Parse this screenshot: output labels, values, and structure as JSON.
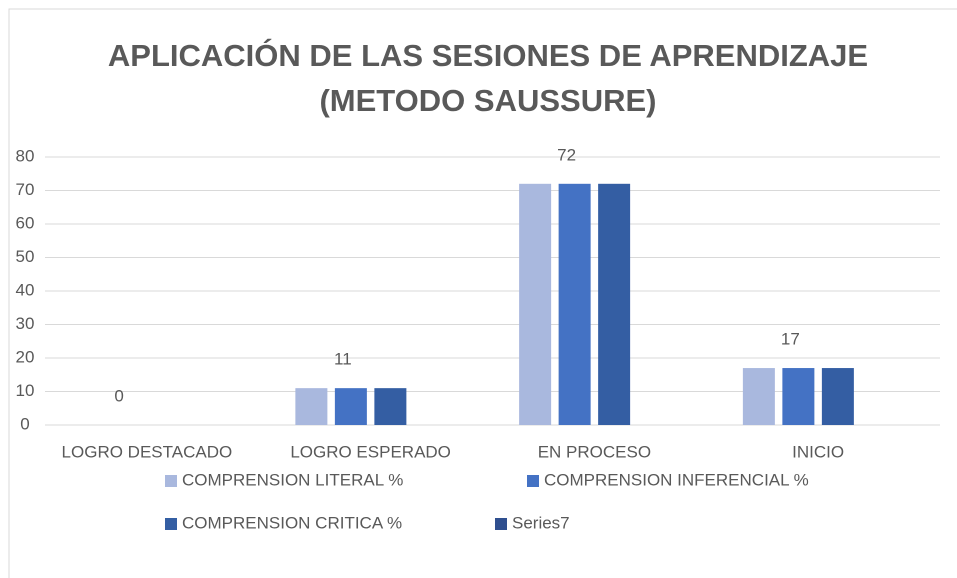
{
  "chart_data": {
    "type": "bar",
    "title": [
      "APLICACIÓN DE LAS SESIONES DE  APRENDIZAJE",
      "(METODO SAUSSURE)"
    ],
    "categories": [
      "LOGRO DESTACADO",
      "LOGRO ESPERADO",
      "EN PROCESO",
      "INICIO"
    ],
    "series": [
      {
        "name": "COMPRENSION LITERAL %",
        "color": "#a9b8de",
        "values": [
          0,
          11,
          72,
          17
        ]
      },
      {
        "name": "COMPRENSION INFERENCIAL %",
        "color": "#4472c4",
        "values": [
          0,
          11,
          72,
          17
        ],
        "data_labels": true
      },
      {
        "name": "COMPRENSION CRITICA %",
        "color": "#345ea3",
        "values": [
          0,
          11,
          72,
          17
        ]
      },
      {
        "name": "Series7",
        "color": "#2f4f8f",
        "values": [
          null,
          null,
          null,
          null
        ]
      }
    ],
    "ylim": [
      0,
      80
    ],
    "yticks": [
      0,
      10,
      20,
      30,
      40,
      50,
      60,
      70,
      80
    ],
    "grid": true,
    "legend": "bottom"
  }
}
